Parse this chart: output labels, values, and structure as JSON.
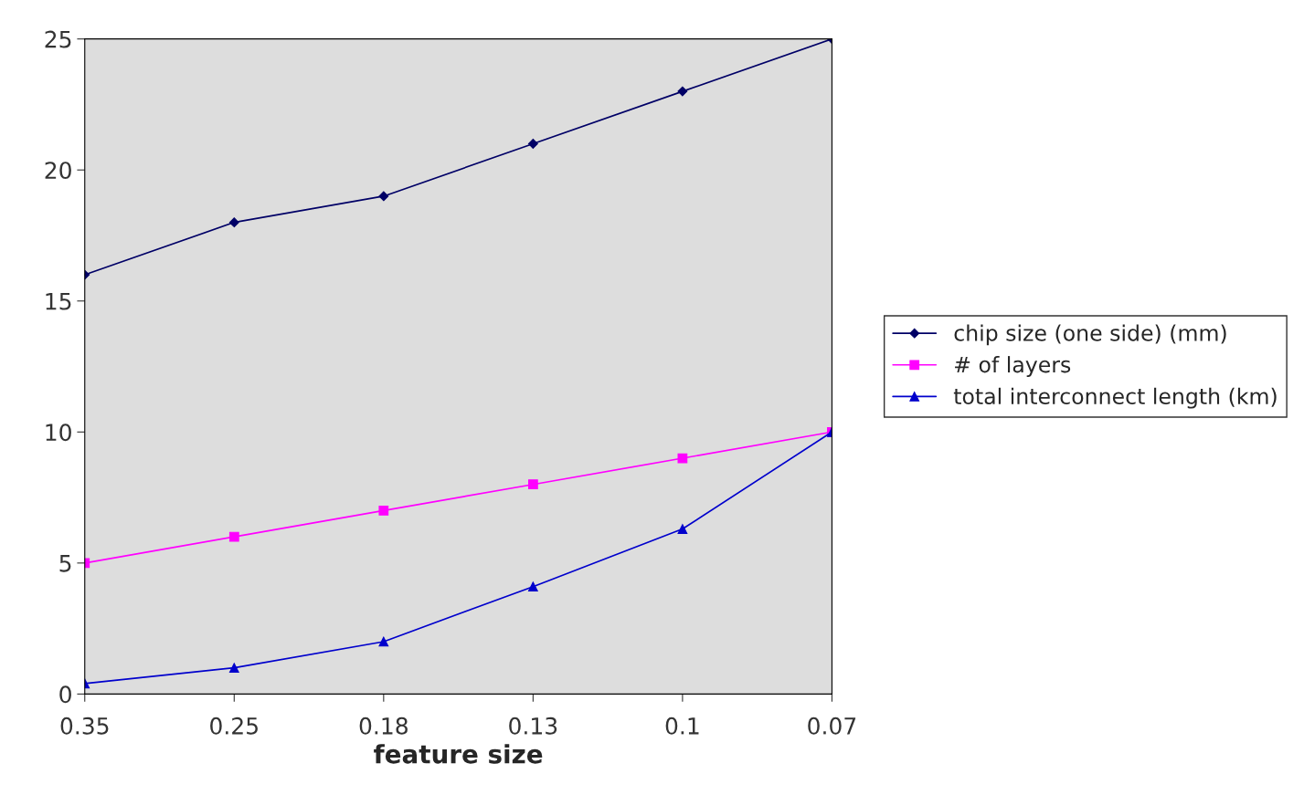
{
  "chart_data": {
    "type": "line",
    "xlabel": "feature size",
    "categories": [
      "0.35",
      "0.25",
      "0.18",
      "0.13",
      "0.1",
      "0.07"
    ],
    "series": [
      {
        "name": "chip size (one side) (mm)",
        "color": "#000066",
        "marker": "diamond",
        "values": [
          16,
          18,
          19,
          21,
          23,
          25
        ]
      },
      {
        "name": "# of layers",
        "color": "#ff00ff",
        "marker": "square",
        "values": [
          5,
          6,
          7,
          8,
          9,
          10
        ]
      },
      {
        "name": "total interconnect length (km)",
        "color": "#0000cc",
        "marker": "triangle",
        "values": [
          0.4,
          1,
          2,
          4.1,
          6.3,
          10
        ]
      }
    ],
    "ylim": [
      0,
      25
    ],
    "yticks": [
      0,
      5,
      10,
      15,
      20,
      25
    ],
    "grid": false,
    "legend": "right"
  }
}
